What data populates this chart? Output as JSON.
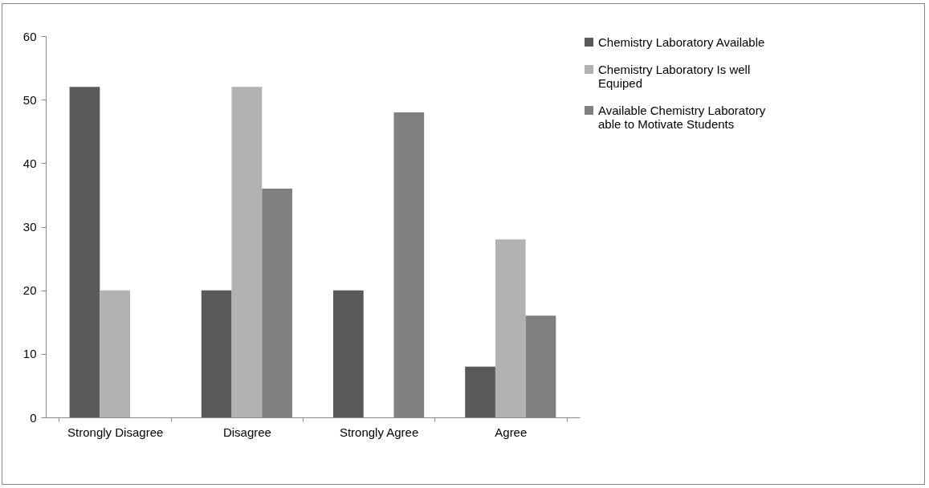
{
  "chart_data": {
    "type": "bar",
    "categories": [
      "Strongly Disagree",
      "Disagree",
      "Strongly Agree",
      "Agree"
    ],
    "series": [
      {
        "name": "Chemistry Laboratory Available",
        "color": "#595959",
        "values": [
          52,
          20,
          20,
          8
        ]
      },
      {
        "name": "Chemistry Laboratory Is well Equiped",
        "color": "#b2b2b2",
        "values": [
          20,
          52,
          0,
          28
        ]
      },
      {
        "name": "Available Chemistry Laboratory able to Motivate Students",
        "color": "#808080",
        "values": [
          0,
          36,
          48,
          16
        ]
      }
    ],
    "ylim": [
      0,
      60
    ],
    "yticks": [
      0,
      10,
      20,
      30,
      40,
      50,
      60
    ],
    "grid": false,
    "legend": "right"
  }
}
